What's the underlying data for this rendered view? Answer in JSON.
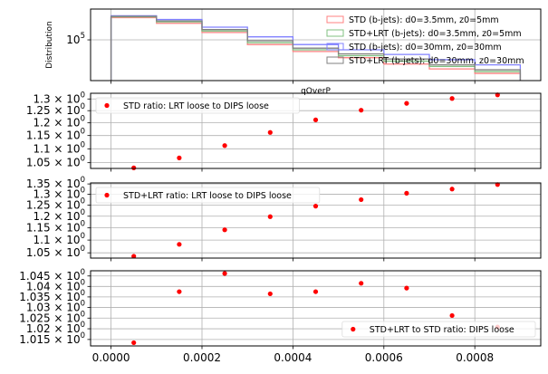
{
  "chart_data": [
    {
      "type": "step",
      "ylabel": "Distribution",
      "xlabel": "qOverP",
      "yscale": "log",
      "xlim": [
        -4.5e-05,
        0.000945
      ],
      "ylim": [
        40000,
        200000
      ],
      "ytick_labels": [
        "10^5"
      ],
      "ytick_values": [
        100000
      ],
      "grid": true,
      "legend_position": "upper right",
      "bin_edges": [
        0.0,
        0.0001,
        0.0002,
        0.0003,
        0.0004,
        0.0005,
        0.0006,
        0.0007,
        0.0008,
        0.0009
      ],
      "series": [
        {
          "name": "STD (b-jets): d0=3.5mm, z0=5mm",
          "color": "#ff8080",
          "values": [
            165000,
            145000,
            118000,
            90000,
            77000,
            67000,
            58000,
            52000,
            47000
          ]
        },
        {
          "name": "STD+LRT (b-jets): d0=3.5mm, z0=5mm",
          "color": "#80c080",
          "values": [
            168000,
            150000,
            122000,
            94000,
            80000,
            70000,
            62000,
            55000,
            49000
          ]
        },
        {
          "name": "STD (b-jets): d0=30mm, z0=30mm",
          "color": "#8080ff",
          "values": [
            172000,
            158000,
            133000,
            107000,
            90000,
            80000,
            72000,
            64000,
            57000
          ]
        },
        {
          "name": "STD+LRT (b-jets): d0=30mm, z0=30mm",
          "color": "#808080",
          "values": [
            170000,
            153000,
            126000,
            98000,
            83000,
            73000,
            65000,
            57000,
            51000
          ]
        }
      ]
    },
    {
      "type": "scatter",
      "yscale": "log",
      "ylim": [
        1.03,
        1.325
      ],
      "ytick_values": [
        1.05,
        1.1,
        1.15,
        1.2,
        1.25,
        1.3
      ],
      "ytick_labels": [
        "1.05 × 10^0",
        "1.1 × 10^0",
        "1.15 × 10^0",
        "1.2 × 10^0",
        "1.25 × 10^0",
        "1.3 × 10^0"
      ],
      "grid": true,
      "legend_position": "upper left",
      "series": [
        {
          "name": "STD ratio: LRT loose to DIPS loose",
          "color": "#ff0000",
          "x": [
            5e-05,
            0.00015,
            0.00025,
            0.00035,
            0.00045,
            0.00055,
            0.00065,
            0.00075,
            0.00085
          ],
          "y": [
            1.032,
            1.067,
            1.112,
            1.162,
            1.212,
            1.252,
            1.281,
            1.302,
            1.318
          ]
        }
      ]
    },
    {
      "type": "scatter",
      "yscale": "log",
      "ylim": [
        1.03,
        1.355
      ],
      "ytick_values": [
        1.05,
        1.1,
        1.15,
        1.2,
        1.25,
        1.3,
        1.35
      ],
      "ytick_labels": [
        "1.05 × 10^0",
        "1.1 × 10^0",
        "1.15 × 10^0",
        "1.2 × 10^0",
        "1.25 × 10^0",
        "1.3 × 10^0",
        "1.35 × 10^0"
      ],
      "grid": true,
      "legend_position": "upper left",
      "series": [
        {
          "name": "STD+LRT ratio: LRT loose to DIPS loose",
          "color": "#ff0000",
          "x": [
            5e-05,
            0.00015,
            0.00025,
            0.00035,
            0.00045,
            0.00055,
            0.00065,
            0.00075,
            0.00085
          ],
          "y": [
            1.037,
            1.083,
            1.142,
            1.198,
            1.245,
            1.275,
            1.305,
            1.325,
            1.347
          ]
        }
      ]
    },
    {
      "type": "scatter",
      "yscale": "log",
      "ylim": [
        1.012,
        1.0475
      ],
      "ytick_values": [
        1.015,
        1.02,
        1.025,
        1.03,
        1.035,
        1.04,
        1.045
      ],
      "ytick_labels": [
        "1.015 × 10^0",
        "1.02 × 10^0",
        "1.025 × 10^0",
        "1.03 × 10^0",
        "1.035 × 10^0",
        "1.04 × 10^0",
        "1.045 × 10^0"
      ],
      "grid": true,
      "legend_position": "lower right",
      "xtick_values": [
        0.0,
        0.0002,
        0.0004,
        0.0006,
        0.0008
      ],
      "xtick_labels": [
        "0.0000",
        "0.0002",
        "0.0004",
        "0.0006",
        "0.0008"
      ],
      "series": [
        {
          "name": "STD+LRT to STD ratio: DIPS loose",
          "color": "#ff0000",
          "x": [
            5e-05,
            0.00015,
            0.00025,
            0.00035,
            0.00045,
            0.00055,
            0.00065,
            0.00075,
            0.00085
          ],
          "y": [
            1.0135,
            1.0375,
            1.0462,
            1.0365,
            1.0375,
            1.0415,
            1.0392,
            1.0262,
            1.0208
          ]
        }
      ]
    }
  ]
}
